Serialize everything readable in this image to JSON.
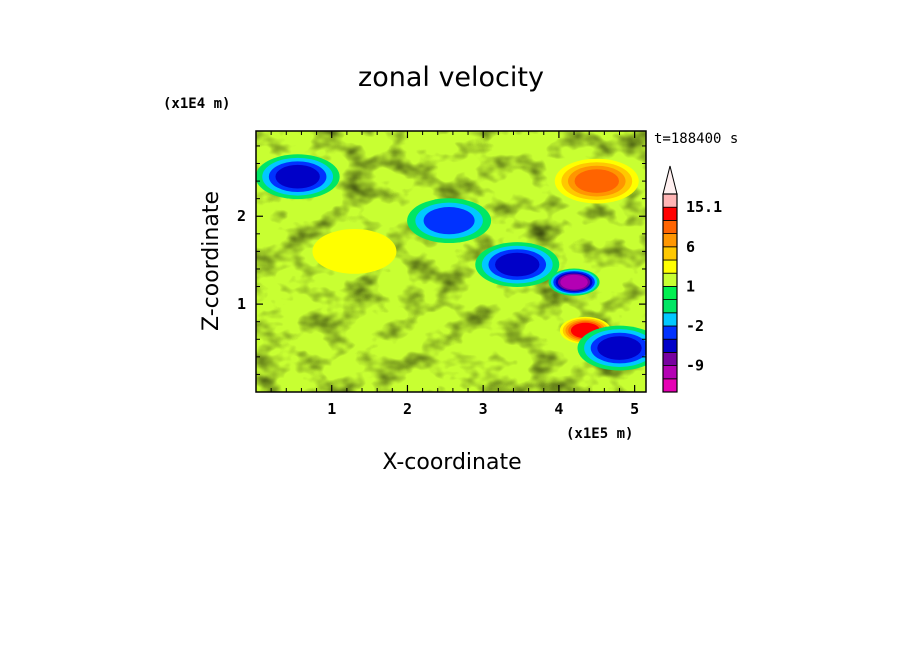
{
  "chart_data": {
    "type": "heatmap",
    "title": "zonal velocity",
    "xlabel": "X-coordinate",
    "ylabel": "Z-coordinate",
    "x_multiplier": "(x1E5 m)",
    "y_multiplier": "(x1E4 m)",
    "time_label": "t=188400 s",
    "xlim": [
      0,
      5.15
    ],
    "ylim": [
      0,
      2.97
    ],
    "x_ticks": [
      "1",
      "2",
      "3",
      "4",
      "5"
    ],
    "y_ticks": [
      "1",
      "2"
    ],
    "colorbar": {
      "levels": [
        -15,
        -12,
        -9,
        -6,
        -4,
        -2,
        -1,
        0,
        1,
        2,
        4,
        6,
        9,
        12,
        15.1
      ],
      "tick_labels": [
        "15.1",
        "6",
        "1",
        "-2",
        "-9"
      ],
      "colors": [
        "#e600b4",
        "#b400b4",
        "#7800a0",
        "#0000c8",
        "#0032ff",
        "#00c8ff",
        "#00e664",
        "#00f050",
        "#c8ff32",
        "#ffff00",
        "#ffc800",
        "#ff9600",
        "#ff6400",
        "#ff0000",
        "#ffb4b4",
        "#fff0f0"
      ],
      "extend": "max"
    },
    "features": [
      {
        "x": 0.55,
        "z": 2.45,
        "value": -6
      },
      {
        "x": 1.3,
        "z": 1.6,
        "value": 1
      },
      {
        "x": 2.55,
        "z": 1.95,
        "value": -4
      },
      {
        "x": 3.45,
        "z": 1.45,
        "value": -6
      },
      {
        "x": 4.2,
        "z": 1.25,
        "value": -12
      },
      {
        "x": 4.35,
        "z": 0.7,
        "value": 9
      },
      {
        "x": 4.5,
        "z": 2.4,
        "value": 6
      },
      {
        "x": 4.8,
        "z": 0.5,
        "value": -6
      }
    ]
  }
}
